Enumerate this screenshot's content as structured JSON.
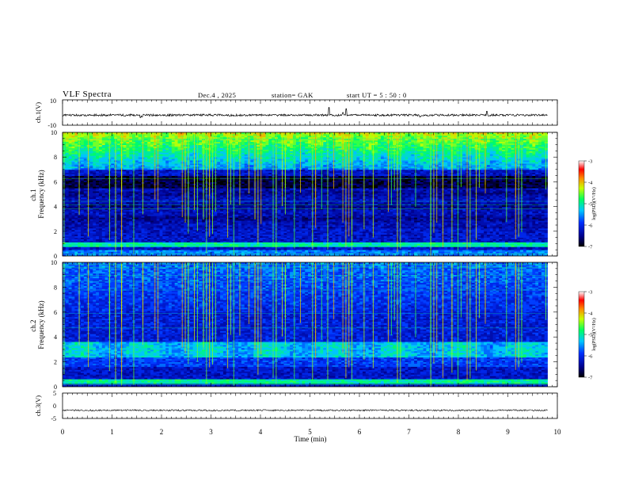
{
  "header": {
    "title": "VLF  Spectra",
    "date": "Dec.4  , 2025",
    "station": "station= GAK",
    "start_ut": "start  UT  =    5  : 50 : 0"
  },
  "chart_data": [
    {
      "type": "line",
      "panel": "ch.1 waveform",
      "ylabel": "ch.1(V)",
      "ylim": [
        -10,
        10
      ],
      "yticks": [
        "10",
        "-10"
      ],
      "x_range_min": [
        0,
        9.8
      ],
      "baseline": -2,
      "noise_amplitude": 0.8,
      "spikes": [
        {
          "x": 1.57,
          "y": -4
        },
        {
          "x": 1.61,
          "y": -3.5
        },
        {
          "x": 5.38,
          "y": 4
        },
        {
          "x": 5.73,
          "y": 3
        },
        {
          "x": 5.67,
          "y": 0
        },
        {
          "x": 7.23,
          "y": -3.5
        },
        {
          "x": 8.58,
          "y": 1
        }
      ]
    },
    {
      "type": "heatmap",
      "panel": "ch.1 spectrogram",
      "ylabel": "ch.1\nFrequency  (kHz)",
      "ylim": [
        0,
        10
      ],
      "yticks": [
        "0",
        "2",
        "4",
        "6",
        "8",
        "10"
      ],
      "x_range_min": [
        0,
        9.8
      ],
      "colorbar": {
        "label": "log(PSD)(V²/Hz)",
        "range": [
          -7,
          -3
        ],
        "ticks": [
          "-3",
          "-4",
          "-5",
          "-6",
          "-7"
        ]
      },
      "features": {
        "dark_band_khz": [
          5.5,
          6.5
        ],
        "low_band_khz": [
          0.7,
          1.1
        ],
        "hiss_above_khz": 7
      }
    },
    {
      "type": "heatmap",
      "panel": "ch.2 spectrogram",
      "ylabel": "ch.2\nFrequency  (kHz)",
      "ylim": [
        0,
        10
      ],
      "yticks": [
        "0",
        "2",
        "4",
        "6",
        "8",
        "10"
      ],
      "x_range_min": [
        0,
        9.8
      ],
      "colorbar": {
        "label": "log(PSD)(V²/Hz)",
        "range": [
          -7,
          -3
        ],
        "ticks": [
          "-3",
          "-4",
          "-5",
          "-6",
          "-7"
        ]
      },
      "features": {
        "bright_band_khz": [
          2.4,
          3.6
        ],
        "low_band_khz": [
          0.2,
          0.6
        ]
      }
    },
    {
      "type": "line",
      "panel": "ch.3 waveform",
      "ylabel": "ch.3(V)",
      "ylim": [
        -5,
        5
      ],
      "yticks": [
        "5",
        "0",
        "-5"
      ],
      "x_range_min": [
        0,
        9.8
      ],
      "baseline": -1.8,
      "noise_amplitude": 0.3
    }
  ],
  "xaxis": {
    "label": "Time  (min)",
    "range": [
      0,
      10
    ],
    "ticks": [
      "0",
      "1",
      "2",
      "3",
      "4",
      "5",
      "6",
      "7",
      "8",
      "9",
      "10"
    ]
  },
  "colors": {
    "spectrogram_background": "#000028",
    "trace": "#000000"
  }
}
